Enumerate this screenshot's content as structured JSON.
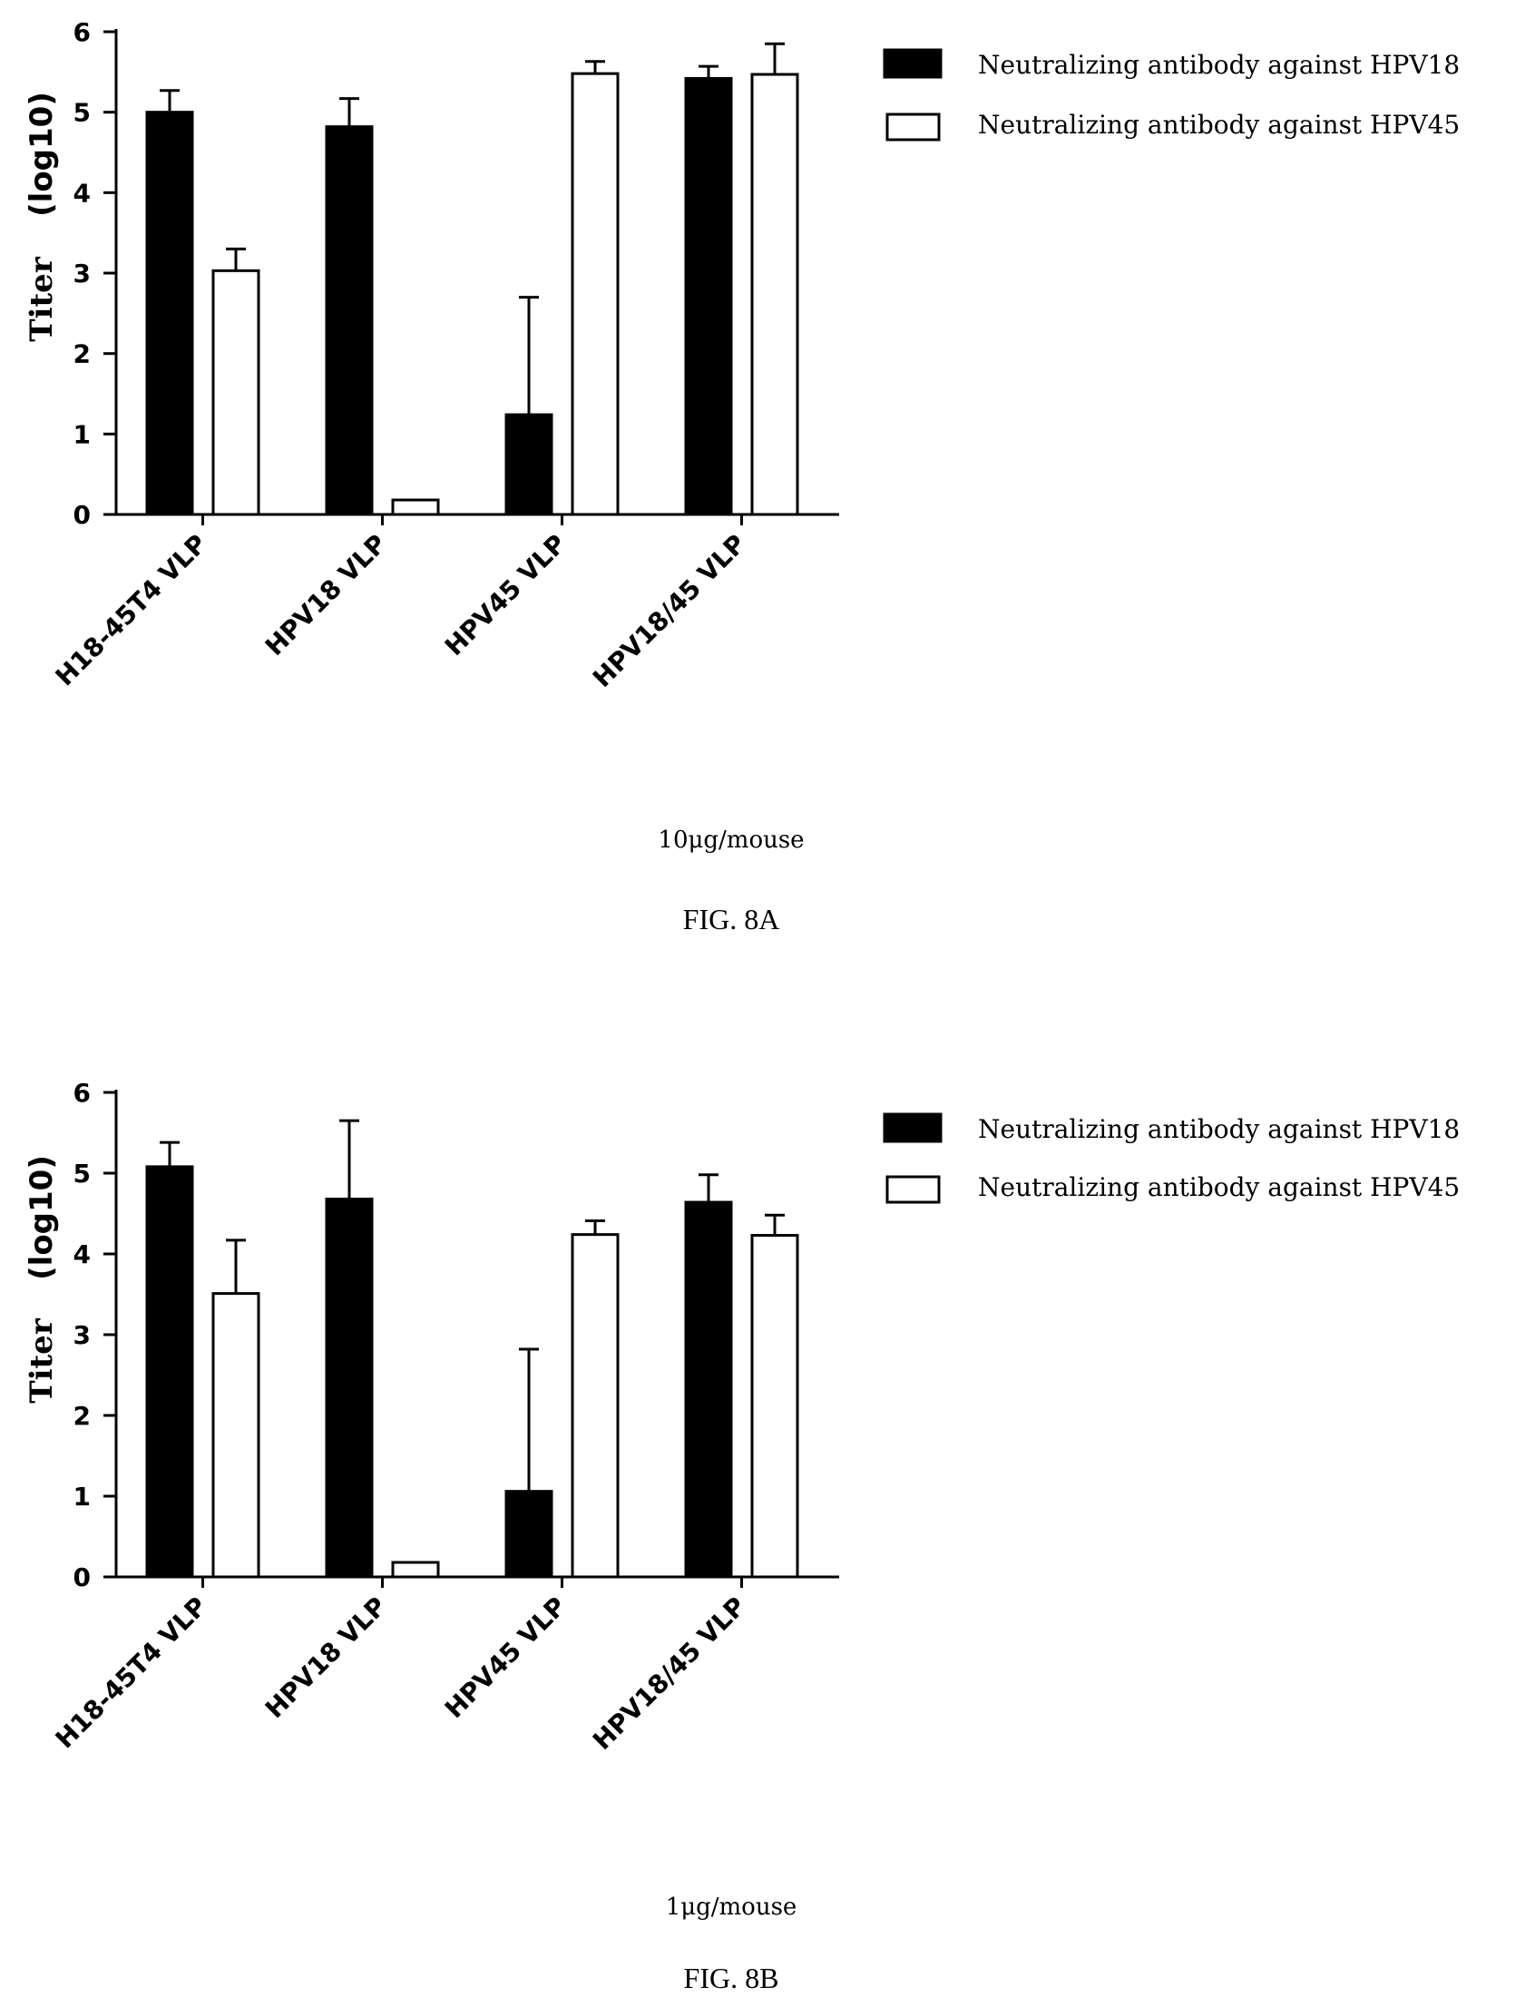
{
  "chart_data": [
    {
      "type": "bar",
      "id": "fig8a",
      "ylabel_word": "Titer",
      "ylabel_unit": "(log10)",
      "ylim": [
        0,
        6
      ],
      "yticks": [
        "0",
        "1",
        "2",
        "3",
        "4",
        "5",
        "6"
      ],
      "categories": [
        "H18-45T4 VLP",
        "HPV18 VLP",
        "HPV45 VLP",
        "HPV18/45 VLP"
      ],
      "series": [
        {
          "name": "Neutralizing antibody against HPV18",
          "fill": "#000000",
          "values": [
            5.0,
            4.82,
            1.24,
            5.42
          ],
          "errors": [
            0.27,
            0.35,
            1.46,
            0.15
          ]
        },
        {
          "name": "Neutralizing antibody against HPV45",
          "fill": "#ffffff",
          "values": [
            3.03,
            0.18,
            5.48,
            5.47
          ],
          "errors": [
            0.27,
            0.0,
            0.15,
            0.38
          ]
        }
      ],
      "caption": "10μg/mouse",
      "figure_label": "FIG. 8A",
      "legend_position": "top-right",
      "grid": false
    },
    {
      "type": "bar",
      "id": "fig8b",
      "ylabel_word": "Titer",
      "ylabel_unit": "(log10)",
      "ylim": [
        0,
        6
      ],
      "yticks": [
        "0",
        "1",
        "2",
        "3",
        "4",
        "5",
        "6"
      ],
      "categories": [
        "H18-45T4 VLP",
        "HPV18 VLP",
        "HPV45 VLP",
        "HPV18/45 VLP"
      ],
      "series": [
        {
          "name": "Neutralizing antibody against HPV18",
          "fill": "#000000",
          "values": [
            5.08,
            4.68,
            1.06,
            4.64
          ],
          "errors": [
            0.3,
            0.97,
            1.76,
            0.34
          ]
        },
        {
          "name": "Neutralizing antibody against HPV45",
          "fill": "#ffffff",
          "values": [
            3.51,
            0.18,
            4.24,
            4.23
          ],
          "errors": [
            0.66,
            0.0,
            0.17,
            0.25
          ]
        }
      ],
      "caption": "1μg/mouse",
      "figure_label": "FIG. 8B",
      "legend_position": "top-right",
      "grid": false
    }
  ]
}
